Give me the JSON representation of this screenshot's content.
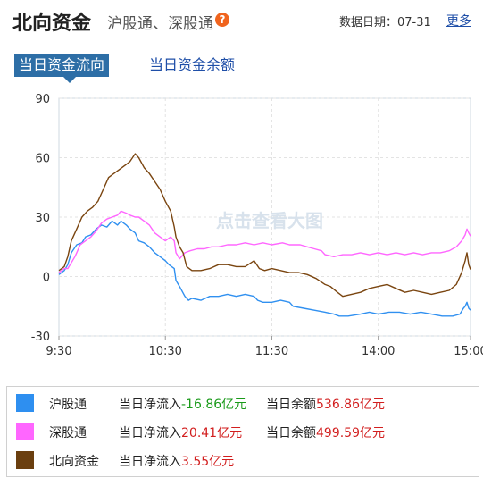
{
  "header": {
    "title": "北向资金",
    "subtitle": "沪股通、深股通",
    "date_label": "数据日期：",
    "date_value": "07-31",
    "more_label": "更多"
  },
  "tabs": [
    {
      "label": "当日资金流向",
      "active": true
    },
    {
      "label": "当日资金余额",
      "active": false
    }
  ],
  "watermark": "点击查看大图",
  "chart_data": {
    "type": "line",
    "x_ticks": [
      "9:30",
      "10:30",
      "11:30",
      "14:00",
      "15:00"
    ],
    "y_ticks": [
      90,
      60,
      30,
      0,
      -30
    ],
    "ylim": [
      -30,
      90
    ],
    "grid": true,
    "series": [
      {
        "name": "沪股通",
        "color": "#3090f0",
        "values": [
          [
            0,
            1
          ],
          [
            3,
            3
          ],
          [
            5,
            6
          ],
          [
            7,
            12
          ],
          [
            10,
            16
          ],
          [
            13,
            17
          ],
          [
            15,
            20
          ],
          [
            18,
            21
          ],
          [
            21,
            24
          ],
          [
            24,
            26
          ],
          [
            27,
            25
          ],
          [
            30,
            28
          ],
          [
            33,
            26
          ],
          [
            35,
            28
          ],
          [
            38,
            26
          ],
          [
            40,
            24
          ],
          [
            43,
            22
          ],
          [
            45,
            18
          ],
          [
            48,
            17
          ],
          [
            51,
            15
          ],
          [
            54,
            12
          ],
          [
            57,
            10
          ],
          [
            60,
            8
          ],
          [
            62,
            6
          ],
          [
            65,
            4
          ],
          [
            66,
            -2
          ],
          [
            68,
            -5
          ],
          [
            71,
            -10
          ],
          [
            73,
            -12
          ],
          [
            75,
            -11
          ],
          [
            80,
            -12
          ],
          [
            85,
            -10
          ],
          [
            90,
            -10
          ],
          [
            95,
            -9
          ],
          [
            100,
            -10
          ],
          [
            105,
            -9
          ],
          [
            110,
            -10
          ],
          [
            112,
            -12
          ],
          [
            115,
            -13
          ],
          [
            120,
            -13
          ],
          [
            125,
            -12
          ],
          [
            130,
            -13
          ],
          [
            132,
            -15
          ],
          [
            138,
            -16
          ],
          [
            144,
            -17
          ],
          [
            150,
            -18
          ],
          [
            155,
            -19
          ],
          [
            158,
            -20
          ],
          [
            163,
            -20
          ],
          [
            170,
            -19
          ],
          [
            175,
            -18
          ],
          [
            180,
            -19
          ],
          [
            186,
            -18
          ],
          [
            192,
            -18
          ],
          [
            198,
            -19
          ],
          [
            204,
            -18
          ],
          [
            210,
            -19
          ],
          [
            216,
            -20
          ],
          [
            222,
            -20
          ],
          [
            226,
            -19
          ],
          [
            228,
            -16
          ],
          [
            229,
            -15
          ],
          [
            230,
            -13
          ],
          [
            231,
            -16
          ],
          [
            232,
            -17
          ]
        ]
      },
      {
        "name": "深股通",
        "color": "#ff66ff",
        "values": [
          [
            0,
            2
          ],
          [
            3,
            4
          ],
          [
            5,
            4
          ],
          [
            7,
            7
          ],
          [
            9,
            10
          ],
          [
            10,
            12
          ],
          [
            12,
            16
          ],
          [
            15,
            18
          ],
          [
            18,
            20
          ],
          [
            21,
            23
          ],
          [
            24,
            27
          ],
          [
            27,
            29
          ],
          [
            30,
            30
          ],
          [
            33,
            31
          ],
          [
            35,
            33
          ],
          [
            38,
            32
          ],
          [
            40,
            31
          ],
          [
            43,
            30
          ],
          [
            45,
            30
          ],
          [
            48,
            28
          ],
          [
            51,
            26
          ],
          [
            54,
            22
          ],
          [
            57,
            20
          ],
          [
            60,
            18
          ],
          [
            63,
            20
          ],
          [
            65,
            18
          ],
          [
            66,
            12
          ],
          [
            68,
            9
          ],
          [
            71,
            12
          ],
          [
            74,
            13
          ],
          [
            78,
            14
          ],
          [
            82,
            14
          ],
          [
            86,
            15
          ],
          [
            90,
            15
          ],
          [
            95,
            16
          ],
          [
            100,
            16
          ],
          [
            105,
            17
          ],
          [
            110,
            16
          ],
          [
            115,
            17
          ],
          [
            120,
            16
          ],
          [
            126,
            17
          ],
          [
            130,
            16
          ],
          [
            136,
            16
          ],
          [
            140,
            15
          ],
          [
            144,
            14
          ],
          [
            148,
            13
          ],
          [
            150,
            11
          ],
          [
            155,
            10
          ],
          [
            160,
            11
          ],
          [
            165,
            11
          ],
          [
            170,
            12
          ],
          [
            175,
            11
          ],
          [
            180,
            12
          ],
          [
            185,
            11
          ],
          [
            190,
            12
          ],
          [
            195,
            11
          ],
          [
            200,
            12
          ],
          [
            205,
            11
          ],
          [
            210,
            12
          ],
          [
            215,
            12
          ],
          [
            220,
            13
          ],
          [
            224,
            15
          ],
          [
            227,
            18
          ],
          [
            229,
            21
          ],
          [
            230,
            24
          ],
          [
            231,
            22
          ],
          [
            232,
            20.41
          ]
        ]
      },
      {
        "name": "北向资金",
        "color": "#7a4510",
        "values": [
          [
            0,
            3
          ],
          [
            3,
            5
          ],
          [
            5,
            10
          ],
          [
            7,
            18
          ],
          [
            10,
            24
          ],
          [
            13,
            30
          ],
          [
            16,
            33
          ],
          [
            19,
            35
          ],
          [
            22,
            38
          ],
          [
            25,
            44
          ],
          [
            28,
            50
          ],
          [
            31,
            52
          ],
          [
            34,
            54
          ],
          [
            37,
            56
          ],
          [
            40,
            58
          ],
          [
            43,
            62
          ],
          [
            45,
            60
          ],
          [
            48,
            55
          ],
          [
            51,
            52
          ],
          [
            54,
            48
          ],
          [
            57,
            44
          ],
          [
            60,
            38
          ],
          [
            63,
            33
          ],
          [
            65,
            25
          ],
          [
            66,
            20
          ],
          [
            68,
            15
          ],
          [
            70,
            12
          ],
          [
            72,
            5
          ],
          [
            75,
            3
          ],
          [
            80,
            3
          ],
          [
            85,
            4
          ],
          [
            90,
            6
          ],
          [
            95,
            6
          ],
          [
            100,
            5
          ],
          [
            105,
            5
          ],
          [
            110,
            8
          ],
          [
            113,
            4
          ],
          [
            116,
            3
          ],
          [
            120,
            4
          ],
          [
            125,
            3
          ],
          [
            130,
            2
          ],
          [
            135,
            2
          ],
          [
            140,
            1
          ],
          [
            145,
            -1
          ],
          [
            150,
            -4
          ],
          [
            153,
            -5
          ],
          [
            157,
            -8
          ],
          [
            160,
            -10
          ],
          [
            165,
            -9
          ],
          [
            170,
            -8
          ],
          [
            175,
            -6
          ],
          [
            180,
            -5
          ],
          [
            185,
            -4
          ],
          [
            190,
            -6
          ],
          [
            195,
            -8
          ],
          [
            200,
            -7
          ],
          [
            205,
            -8
          ],
          [
            210,
            -9
          ],
          [
            215,
            -8
          ],
          [
            220,
            -7
          ],
          [
            224,
            -4
          ],
          [
            227,
            2
          ],
          [
            229,
            8
          ],
          [
            230,
            12
          ],
          [
            231,
            6
          ],
          [
            232,
            3.55
          ]
        ]
      }
    ]
  },
  "legend": [
    {
      "name": "沪股通",
      "color": "#2e8ff0",
      "flow_label": "当日净流入",
      "flow_value": "-16.86亿元",
      "flow_sign": "neg",
      "bal_label": "当日余额",
      "bal_value": "536.86亿元"
    },
    {
      "name": "深股通",
      "color": "#ff66ff",
      "flow_label": "当日净流入",
      "flow_value": "20.41亿元",
      "flow_sign": "pos",
      "bal_label": "当日余额",
      "bal_value": "499.59亿元"
    },
    {
      "name": "北向资金",
      "color": "#6b3f10",
      "flow_label": "当日净流入",
      "flow_value": "3.55亿元",
      "flow_sign": "pos"
    }
  ]
}
